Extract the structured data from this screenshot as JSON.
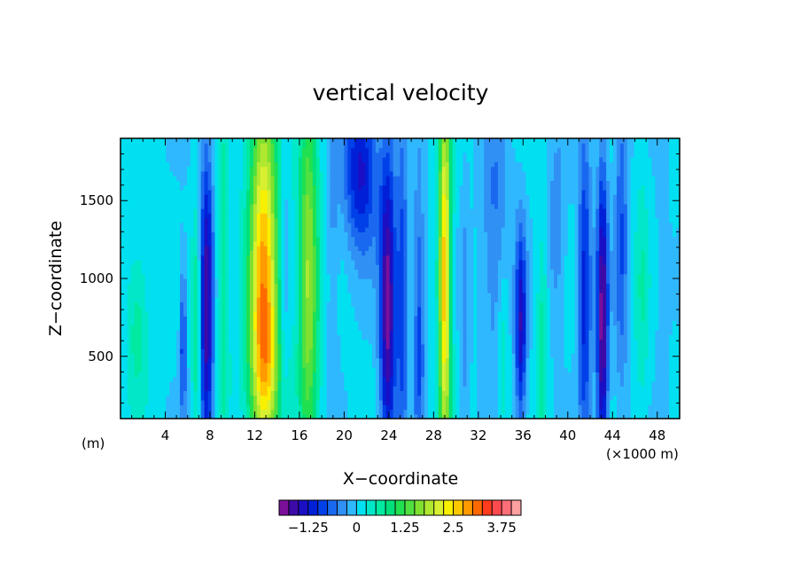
{
  "chart_data": {
    "type": "heatmap",
    "title": "vertical velocity",
    "xlabel": "X−coordinate",
    "ylabel": "Z−coordinate",
    "x_unit_label": "(m)",
    "x_scale_label": "(×1000 m)",
    "xlim": [
      0,
      50
    ],
    "ylim": [
      100,
      1900
    ],
    "x_ticks": [
      4,
      8,
      12,
      16,
      20,
      24,
      28,
      32,
      36,
      40,
      44,
      48
    ],
    "x_tick_labels": [
      "4",
      "8",
      "12",
      "16",
      "20",
      "24",
      "28",
      "32",
      "36",
      "40",
      "44",
      "48"
    ],
    "y_ticks": [
      500,
      1000,
      1500
    ],
    "y_tick_labels": [
      "500",
      "1000",
      "1500"
    ],
    "x_minor_step": 1,
    "y_minor_step": 100,
    "value_levels": [
      -1.75,
      -1.5,
      -1.25,
      -1.0,
      -0.75,
      -0.5,
      -0.25,
      0,
      0.25,
      0.5,
      0.75,
      1.0,
      1.25,
      1.5,
      1.75,
      2.0,
      2.25,
      2.5,
      2.75,
      3.0,
      3.25,
      3.5,
      3.75,
      4.0
    ],
    "colorbar": {
      "colors": [
        "#7a0f9a",
        "#3d0aa8",
        "#1a0fc4",
        "#0020d8",
        "#0040e8",
        "#1a68f0",
        "#3090f4",
        "#30b8ff",
        "#00e0f0",
        "#00e8c8",
        "#00eaa0",
        "#00e07a",
        "#20e050",
        "#50e040",
        "#80e030",
        "#b0e830",
        "#d8f030",
        "#f8f000",
        "#ffc800",
        "#ff9a00",
        "#ff6a00",
        "#ff3c1e",
        "#ff4a50",
        "#ff6e78",
        "#ffa0a0"
      ],
      "tick_values": [
        -1.25,
        0,
        1.25,
        2.5,
        3.75
      ],
      "tick_labels": [
        "−1.25",
        "0",
        "1.25",
        "2.5",
        "3.75"
      ]
    },
    "features": [
      {
        "x": 1.5,
        "z_center": 700,
        "z_spread": 500,
        "width": 1.0,
        "value": 0.6
      },
      {
        "x": 5.6,
        "z_center": 600,
        "z_spread": 500,
        "width": 0.3,
        "value": -1.0
      },
      {
        "x": 6.8,
        "z_center": 700,
        "z_spread": 700,
        "width": 0.4,
        "value": 0.8
      },
      {
        "x": 7.7,
        "z_center": 800,
        "z_spread": 1000,
        "width": 0.6,
        "value": -1.75
      },
      {
        "x": 9.2,
        "z_center": 1000,
        "z_spread": 1000,
        "width": 0.6,
        "value": 0.7
      },
      {
        "x": 12.8,
        "z_center": 1100,
        "z_spread": 1200,
        "width": 1.3,
        "value": 2.6
      },
      {
        "x": 13.0,
        "z_center": 400,
        "z_spread": 500,
        "width": 1.5,
        "value": 1.0
      },
      {
        "x": 14.6,
        "z_center": 1000,
        "z_spread": 900,
        "width": 0.4,
        "value": -0.5
      },
      {
        "x": 16.8,
        "z_center": 1000,
        "z_spread": 1100,
        "width": 0.9,
        "value": 1.8
      },
      {
        "x": 19.0,
        "z_center": 1100,
        "z_spread": 1100,
        "width": 0.5,
        "value": -0.35
      },
      {
        "x": 21.5,
        "z_center": 1700,
        "z_spread": 500,
        "width": 1.5,
        "value": -1.4
      },
      {
        "x": 23.9,
        "z_center": 800,
        "z_spread": 1000,
        "width": 0.7,
        "value": -1.9
      },
      {
        "x": 25.2,
        "z_center": 900,
        "z_spread": 1000,
        "width": 0.5,
        "value": -1.0
      },
      {
        "x": 26.7,
        "z_center": 700,
        "z_spread": 900,
        "width": 0.5,
        "value": -0.9
      },
      {
        "x": 29.0,
        "z_center": 1000,
        "z_spread": 1200,
        "width": 0.55,
        "value": 2.7
      },
      {
        "x": 30.8,
        "z_center": 700,
        "z_spread": 900,
        "width": 0.4,
        "value": -0.4
      },
      {
        "x": 33.5,
        "z_center": 1300,
        "z_spread": 900,
        "width": 1.2,
        "value": -0.6
      },
      {
        "x": 35.8,
        "z_center": 700,
        "z_spread": 600,
        "width": 0.5,
        "value": -1.5
      },
      {
        "x": 34.2,
        "z_center": 500,
        "z_spread": 600,
        "width": 0.5,
        "value": 0.5
      },
      {
        "x": 37.7,
        "z_center": 600,
        "z_spread": 700,
        "width": 0.5,
        "value": 0.6
      },
      {
        "x": 39.0,
        "z_center": 1300,
        "z_spread": 600,
        "width": 0.8,
        "value": -0.5
      },
      {
        "x": 41.5,
        "z_center": 900,
        "z_spread": 1000,
        "width": 0.6,
        "value": -1.2
      },
      {
        "x": 43.1,
        "z_center": 700,
        "z_spread": 1000,
        "width": 0.5,
        "value": -1.9
      },
      {
        "x": 44.8,
        "z_center": 1300,
        "z_spread": 1000,
        "width": 0.6,
        "value": -0.8
      },
      {
        "x": 46.6,
        "z_center": 900,
        "z_spread": 900,
        "width": 0.6,
        "value": 0.4
      },
      {
        "x": 48.5,
        "z_center": 900,
        "z_spread": 1100,
        "width": 0.5,
        "value": -0.3
      }
    ]
  }
}
